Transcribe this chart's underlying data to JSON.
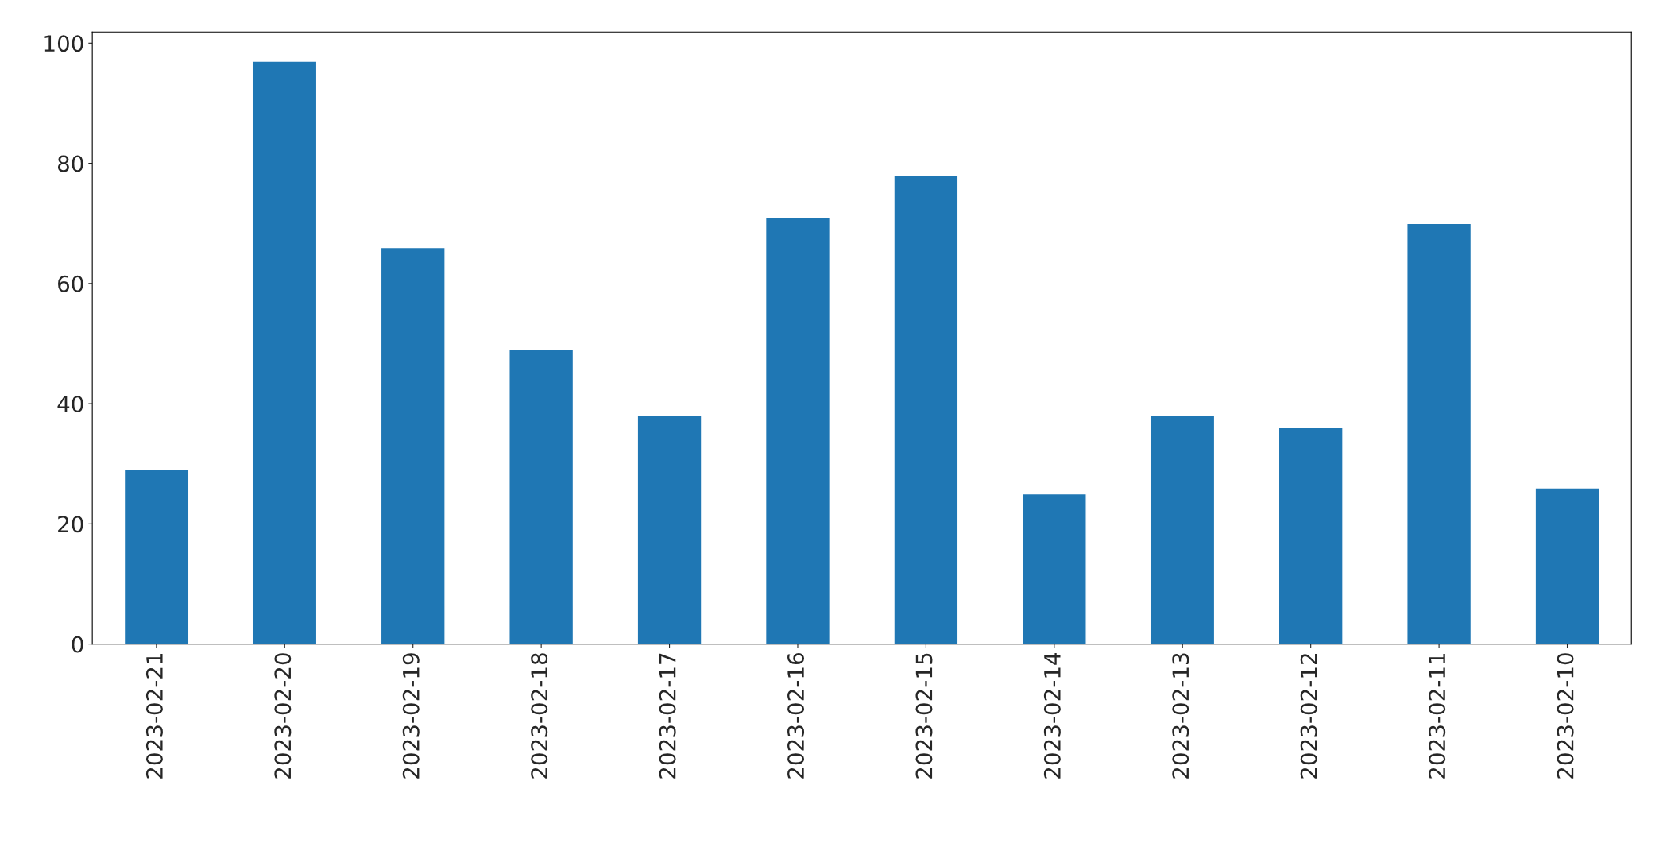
{
  "chart_data": {
    "type": "bar",
    "categories": [
      "2023-02-21",
      "2023-02-20",
      "2023-02-19",
      "2023-02-18",
      "2023-02-17",
      "2023-02-16",
      "2023-02-15",
      "2023-02-14",
      "2023-02-13",
      "2023-02-12",
      "2023-02-11",
      "2023-02-10"
    ],
    "values": [
      29,
      97,
      66,
      49,
      38,
      71,
      78,
      25,
      38,
      36,
      70,
      26
    ],
    "color": "#1f77b4",
    "ylim": [
      0,
      101.85
    ],
    "yticks": [
      0,
      20,
      40,
      60,
      80,
      100
    ],
    "grid": false,
    "legend": false
  }
}
